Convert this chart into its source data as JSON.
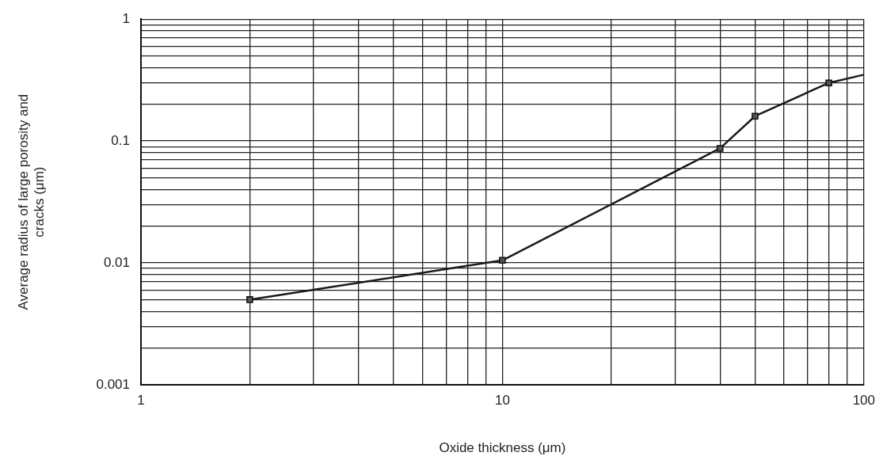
{
  "chart_data": {
    "type": "line",
    "xlabel": "Oxide thickness (μm)",
    "ylabel": "Average radius of large porosity and cracks (μm)",
    "log": "xy",
    "grid": true,
    "marker": "square",
    "line_style": "solid",
    "legend": false,
    "xlim": [
      1,
      100
    ],
    "ylim": [
      0.001,
      1
    ],
    "xticks": [
      1,
      {
        "value": 2,
        "label": null
      },
      {
        "value": 3,
        "label": null
      },
      {
        "value": 4,
        "label": null
      },
      {
        "value": 5,
        "label": null
      },
      {
        "value": 6,
        "label": null
      },
      {
        "value": 7,
        "label": null
      },
      {
        "value": 8,
        "label": null
      },
      {
        "value": 9,
        "label": null
      },
      10,
      {
        "value": 20,
        "label": null
      },
      {
        "value": 30,
        "label": null
      },
      {
        "value": 40,
        "label": null
      },
      {
        "value": 50,
        "label": null
      },
      {
        "value": 60,
        "label": null
      },
      {
        "value": 70,
        "label": null
      },
      {
        "value": 80,
        "label": null
      },
      {
        "value": 90,
        "label": null
      },
      100
    ],
    "yticks": [
      0.001,
      {
        "value": 0.002,
        "label": null
      },
      {
        "value": 0.003,
        "label": null
      },
      {
        "value": 0.004,
        "label": null
      },
      {
        "value": 0.005,
        "label": null
      },
      {
        "value": 0.006,
        "label": null
      },
      {
        "value": 0.007,
        "label": null
      },
      {
        "value": 0.008,
        "label": null
      },
      {
        "value": 0.009,
        "label": null
      },
      0.01,
      {
        "value": 0.02,
        "label": null
      },
      {
        "value": 0.03,
        "label": null
      },
      {
        "value": 0.04,
        "label": null
      },
      {
        "value": 0.05,
        "label": null
      },
      {
        "value": 0.06,
        "label": null
      },
      {
        "value": 0.07,
        "label": null
      },
      {
        "value": 0.08,
        "label": null
      },
      {
        "value": 0.09,
        "label": null
      },
      0.1,
      {
        "value": 0.2,
        "label": null
      },
      {
        "value": 0.3,
        "label": null
      },
      {
        "value": 0.4,
        "label": null
      },
      {
        "value": 0.5,
        "label": null
      },
      {
        "value": 0.6,
        "label": null
      },
      {
        "value": 0.7,
        "label": null
      },
      {
        "value": 0.8,
        "label": null
      },
      {
        "value": 0.9,
        "label": null
      },
      1
    ],
    "series": [
      {
        "color": "#1a1a1a",
        "x": [
          2,
          10,
          40,
          50,
          80
        ],
        "values": [
          0.005,
          0.0105,
          0.087,
          0.16,
          0.3
        ]
      },
      {
        "color": "#1a1a1a",
        "marker": "none",
        "x": [
          80,
          100
        ],
        "values": [
          0.3,
          0.35
        ]
      }
    ]
  }
}
